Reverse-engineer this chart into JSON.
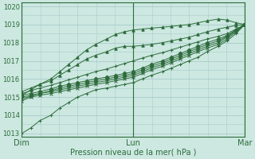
{
  "bg_color": "#cce8e0",
  "grid_color": "#aacccc",
  "line_color": "#2d6b3c",
  "text_color": "#2d6b3c",
  "xlabel": "Pression niveau de la mer( hPa )",
  "xtick_labels": [
    "Dim",
    "Lun",
    "Mar"
  ],
  "xtick_positions": [
    0.0,
    0.5,
    1.0
  ],
  "ylim": [
    1012.8,
    1020.2
  ],
  "yticks": [
    1013,
    1014,
    1015,
    1016,
    1017,
    1018,
    1019,
    1020
  ],
  "figsize": [
    3.2,
    2.0
  ],
  "dpi": 100,
  "series": [
    {
      "x": [
        0.0,
        0.04,
        0.08,
        0.13,
        0.17,
        0.21,
        0.25,
        0.29,
        0.33,
        0.38,
        0.42,
        0.46,
        0.5,
        0.54,
        0.58,
        0.63,
        0.67,
        0.71,
        0.75,
        0.79,
        0.83,
        0.88,
        0.92,
        0.96,
        1.0
      ],
      "y": [
        1013.0,
        1013.3,
        1013.7,
        1014.0,
        1014.4,
        1014.7,
        1015.0,
        1015.2,
        1015.4,
        1015.5,
        1015.6,
        1015.7,
        1015.8,
        1016.0,
        1016.2,
        1016.4,
        1016.6,
        1016.8,
        1017.0,
        1017.2,
        1017.5,
        1017.8,
        1018.1,
        1018.5,
        1019.0
      ],
      "marker": "+"
    },
    {
      "x": [
        0.0,
        0.04,
        0.08,
        0.13,
        0.17,
        0.21,
        0.25,
        0.29,
        0.33,
        0.38,
        0.42,
        0.46,
        0.5,
        0.54,
        0.58,
        0.63,
        0.67,
        0.71,
        0.75,
        0.79,
        0.83,
        0.88,
        0.92,
        0.96,
        1.0
      ],
      "y": [
        1014.8,
        1015.0,
        1015.1,
        1015.2,
        1015.3,
        1015.4,
        1015.5,
        1015.6,
        1015.7,
        1015.8,
        1015.9,
        1016.0,
        1016.1,
        1016.3,
        1016.5,
        1016.7,
        1016.9,
        1017.1,
        1017.3,
        1017.5,
        1017.7,
        1017.9,
        1018.2,
        1018.6,
        1019.0
      ],
      "marker": "x"
    },
    {
      "x": [
        0.0,
        0.04,
        0.08,
        0.13,
        0.17,
        0.21,
        0.25,
        0.29,
        0.33,
        0.38,
        0.42,
        0.46,
        0.5,
        0.54,
        0.58,
        0.63,
        0.67,
        0.71,
        0.75,
        0.79,
        0.83,
        0.88,
        0.92,
        0.96,
        1.0
      ],
      "y": [
        1014.9,
        1015.05,
        1015.2,
        1015.3,
        1015.4,
        1015.5,
        1015.6,
        1015.7,
        1015.8,
        1015.9,
        1016.0,
        1016.1,
        1016.2,
        1016.4,
        1016.6,
        1016.8,
        1017.0,
        1017.2,
        1017.4,
        1017.6,
        1017.8,
        1018.0,
        1018.3,
        1018.65,
        1019.0
      ],
      "marker": "x"
    },
    {
      "x": [
        0.0,
        0.04,
        0.08,
        0.13,
        0.17,
        0.21,
        0.25,
        0.29,
        0.33,
        0.38,
        0.42,
        0.46,
        0.5,
        0.54,
        0.58,
        0.63,
        0.67,
        0.71,
        0.75,
        0.79,
        0.83,
        0.88,
        0.92,
        0.96,
        1.0
      ],
      "y": [
        1015.0,
        1015.1,
        1015.2,
        1015.35,
        1015.5,
        1015.6,
        1015.7,
        1015.8,
        1015.9,
        1016.0,
        1016.1,
        1016.2,
        1016.3,
        1016.5,
        1016.7,
        1016.9,
        1017.1,
        1017.3,
        1017.5,
        1017.7,
        1017.9,
        1018.1,
        1018.35,
        1018.7,
        1019.0
      ],
      "marker": "D"
    },
    {
      "x": [
        0.0,
        0.04,
        0.08,
        0.13,
        0.17,
        0.21,
        0.25,
        0.29,
        0.33,
        0.38,
        0.42,
        0.46,
        0.5,
        0.54,
        0.58,
        0.63,
        0.67,
        0.71,
        0.75,
        0.79,
        0.83,
        0.88,
        0.92,
        0.96,
        1.0
      ],
      "y": [
        1015.1,
        1015.2,
        1015.3,
        1015.45,
        1015.6,
        1015.7,
        1015.8,
        1015.9,
        1016.0,
        1016.1,
        1016.2,
        1016.3,
        1016.4,
        1016.6,
        1016.8,
        1017.0,
        1017.2,
        1017.4,
        1017.6,
        1017.8,
        1018.0,
        1018.2,
        1018.4,
        1018.7,
        1019.0
      ],
      "marker": "D"
    },
    {
      "x": [
        0.0,
        0.04,
        0.08,
        0.13,
        0.17,
        0.21,
        0.25,
        0.29,
        0.33,
        0.38,
        0.42,
        0.46,
        0.5,
        0.54,
        0.58,
        0.63,
        0.67,
        0.71,
        0.75,
        0.79,
        0.83,
        0.88,
        0.92,
        0.96,
        1.0
      ],
      "y": [
        1015.2,
        1015.35,
        1015.5,
        1015.65,
        1015.8,
        1015.95,
        1016.1,
        1016.25,
        1016.4,
        1016.55,
        1016.7,
        1016.85,
        1017.0,
        1017.15,
        1017.3,
        1017.45,
        1017.6,
        1017.75,
        1017.9,
        1018.05,
        1018.2,
        1018.35,
        1018.5,
        1018.75,
        1019.0
      ],
      "marker": "+"
    },
    {
      "x": [
        0.0,
        0.04,
        0.08,
        0.13,
        0.17,
        0.21,
        0.25,
        0.29,
        0.33,
        0.38,
        0.42,
        0.46,
        0.5,
        0.54,
        0.58,
        0.63,
        0.67,
        0.71,
        0.75,
        0.79,
        0.83,
        0.88,
        0.92,
        0.96,
        1.0
      ],
      "y": [
        1015.3,
        1015.5,
        1015.7,
        1015.9,
        1016.2,
        1016.5,
        1016.8,
        1017.1,
        1017.3,
        1017.5,
        1017.7,
        1017.8,
        1017.8,
        1017.85,
        1017.9,
        1018.0,
        1018.1,
        1018.2,
        1018.3,
        1018.45,
        1018.6,
        1018.75,
        1018.85,
        1018.95,
        1019.0
      ],
      "marker": "^"
    },
    {
      "x": [
        0.0,
        0.04,
        0.08,
        0.13,
        0.17,
        0.21,
        0.25,
        0.29,
        0.33,
        0.38,
        0.42,
        0.46,
        0.5,
        0.54,
        0.58,
        0.63,
        0.67,
        0.71,
        0.75,
        0.79,
        0.83,
        0.88,
        0.92,
        0.96,
        1.0
      ],
      "y": [
        1015.1,
        1015.4,
        1015.7,
        1016.0,
        1016.4,
        1016.8,
        1017.2,
        1017.6,
        1017.9,
        1018.2,
        1018.45,
        1018.6,
        1018.7,
        1018.75,
        1018.8,
        1018.85,
        1018.9,
        1018.95,
        1019.0,
        1019.1,
        1019.2,
        1019.3,
        1019.25,
        1019.1,
        1019.0
      ],
      "marker": "^"
    }
  ],
  "series2": [
    {
      "x": [
        0.5,
        0.54,
        0.58,
        0.63,
        0.67,
        0.71,
        0.75,
        0.79,
        0.83,
        0.88,
        0.92,
        0.96,
        1.0
      ],
      "y": [
        1015.8,
        1016.0,
        1016.2,
        1016.4,
        1016.6,
        1016.8,
        1017.0,
        1017.2,
        1017.5,
        1017.8,
        1018.1,
        1018.5,
        1019.0
      ],
      "marker": "+"
    },
    {
      "x": [
        0.5,
        0.54,
        0.58,
        0.63,
        0.67,
        0.71,
        0.75,
        0.79,
        0.83,
        0.88,
        0.92,
        0.96,
        1.0
      ],
      "y": [
        1016.1,
        1016.3,
        1016.5,
        1016.7,
        1016.9,
        1017.1,
        1017.3,
        1017.5,
        1017.7,
        1017.9,
        1018.2,
        1018.6,
        1019.0
      ],
      "marker": "x"
    },
    {
      "x": [
        0.5,
        0.54,
        0.58,
        0.63,
        0.67,
        0.71,
        0.75,
        0.79,
        0.83,
        0.88,
        0.92,
        0.96,
        1.0
      ],
      "y": [
        1016.2,
        1016.4,
        1016.6,
        1016.8,
        1017.0,
        1017.2,
        1017.4,
        1017.6,
        1017.8,
        1018.0,
        1018.3,
        1018.65,
        1019.0
      ],
      "marker": "x"
    },
    {
      "x": [
        0.5,
        0.54,
        0.58,
        0.63,
        0.67,
        0.71,
        0.75,
        0.79,
        0.83,
        0.88,
        0.92,
        0.96,
        1.0
      ],
      "y": [
        1016.3,
        1016.5,
        1016.7,
        1016.9,
        1017.1,
        1017.3,
        1017.5,
        1017.7,
        1017.9,
        1018.1,
        1018.35,
        1018.7,
        1019.0
      ],
      "marker": "D"
    },
    {
      "x": [
        0.5,
        0.54,
        0.58,
        0.63,
        0.67,
        0.71,
        0.75,
        0.79,
        0.83,
        0.88,
        0.92,
        0.96,
        1.0
      ],
      "y": [
        1016.4,
        1016.6,
        1016.8,
        1017.0,
        1017.2,
        1017.4,
        1017.6,
        1017.8,
        1018.0,
        1018.2,
        1018.4,
        1018.7,
        1019.0
      ],
      "marker": "D"
    },
    {
      "x": [
        0.5,
        0.54,
        0.58,
        0.63,
        0.67,
        0.71,
        0.75,
        0.79,
        0.83,
        0.88,
        0.92,
        0.96,
        1.0
      ],
      "y": [
        1017.0,
        1017.15,
        1017.3,
        1017.45,
        1017.6,
        1017.75,
        1017.9,
        1018.05,
        1018.2,
        1018.35,
        1018.5,
        1018.75,
        1019.0
      ],
      "marker": "+"
    },
    {
      "x": [
        0.5,
        0.54,
        0.58,
        0.63,
        0.67,
        0.71,
        0.75,
        0.79,
        0.83,
        0.88,
        0.92,
        0.96,
        1.0
      ],
      "y": [
        1017.8,
        1017.85,
        1017.9,
        1018.0,
        1018.1,
        1018.2,
        1018.3,
        1018.45,
        1018.6,
        1018.75,
        1018.85,
        1018.95,
        1019.0
      ],
      "marker": "^"
    },
    {
      "x": [
        0.5,
        0.54,
        0.58,
        0.63,
        0.67,
        0.71,
        0.75,
        0.79,
        0.83,
        0.88,
        0.92,
        0.96,
        1.0
      ],
      "y": [
        1018.7,
        1018.75,
        1018.8,
        1018.85,
        1018.9,
        1018.95,
        1019.0,
        1019.1,
        1019.2,
        1019.3,
        1019.25,
        1019.1,
        1019.0
      ],
      "marker": "^"
    }
  ]
}
